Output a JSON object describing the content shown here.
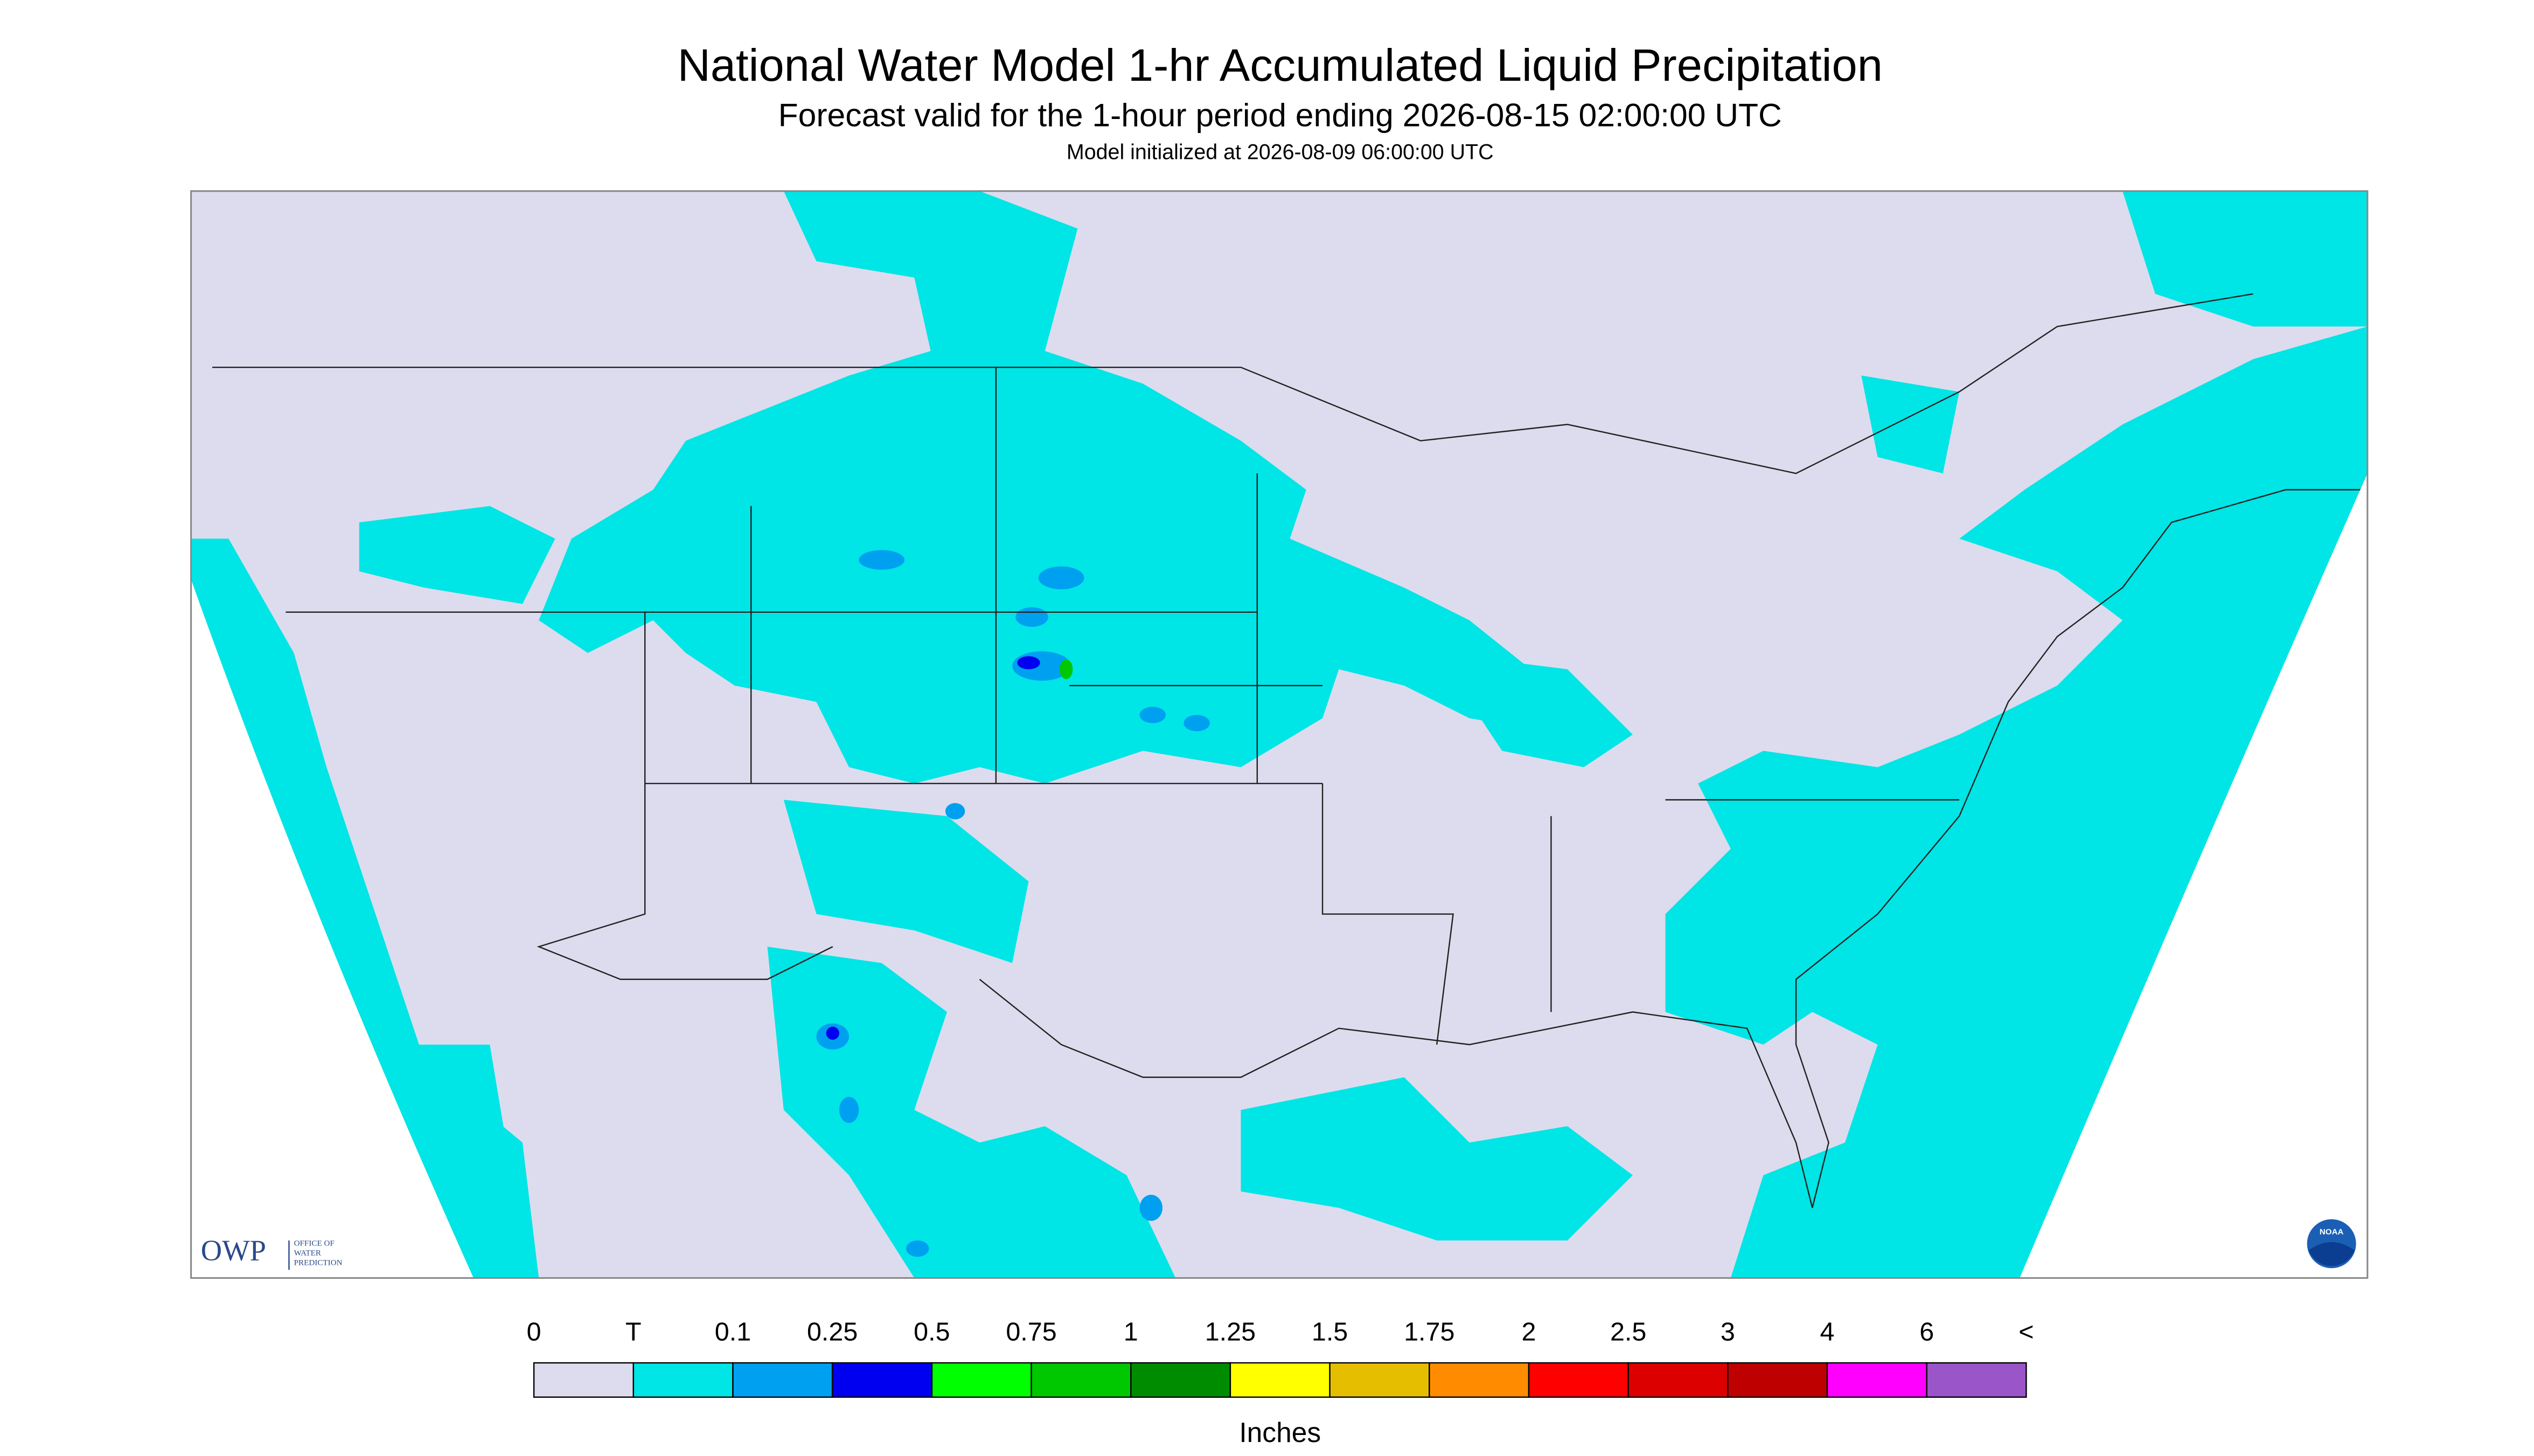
{
  "header": {
    "title": "National Water Model 1-hr Accumulated Liquid Precipitation",
    "subtitle": "Forecast valid for the 1-hour period ending 2026-08-15 02:00:00 UTC",
    "init_line": "Model initialized at 2026-08-09 06:00:00 UTC"
  },
  "legend": {
    "labels": [
      "0",
      "T",
      "0.1",
      "0.25",
      "0.5",
      "0.75",
      "1",
      "1.25",
      "1.5",
      "1.75",
      "2",
      "2.5",
      "3",
      "4",
      "6",
      "<"
    ],
    "colors": [
      "#dcdcee",
      "#00e5e5",
      "#00a0f0",
      "#0000f0",
      "#00ff00",
      "#00c800",
      "#008c00",
      "#ffff00",
      "#e6be00",
      "#ff8c00",
      "#ff0000",
      "#dc0000",
      "#be0000",
      "#ff00ff",
      "#9a55c8"
    ],
    "unit": "Inches"
  },
  "logo": {
    "text": "OWP",
    "subtext": [
      "OFFICE OF",
      "WATER",
      "PREDICTION"
    ],
    "noaa": "NOAA"
  }
}
